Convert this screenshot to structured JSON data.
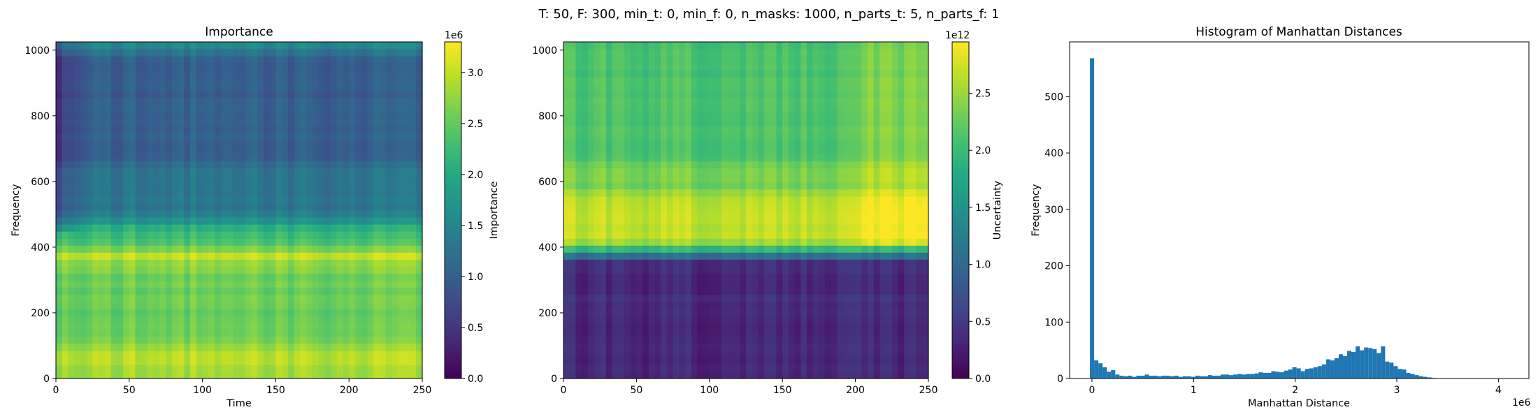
{
  "figure": {
    "suptitle": "T: 50, F: 300, min_t: 0, min_f: 0, n_masks: 1000, n_parts_t: 5, n_parts_f: 1"
  },
  "chart_data": [
    {
      "type": "heatmap",
      "title": "Importance",
      "xlabel": "Time",
      "ylabel": "Frequency",
      "colormap": "viridis",
      "xlim": [
        0,
        250
      ],
      "ylim": [
        0,
        1025
      ],
      "xticks": [
        "0",
        "50",
        "100",
        "150",
        "200",
        "250"
      ],
      "yticks": [
        "0",
        "200",
        "400",
        "600",
        "800",
        "1000"
      ],
      "colorbar": {
        "label": "Importance",
        "multiplier": "1e6",
        "range": [
          0,
          3.3
        ],
        "ticks": [
          "0.0",
          "0.5",
          "1.0",
          "1.5",
          "2.0",
          "2.5",
          "3.0"
        ]
      },
      "description_bands_by_frequency": [
        {
          "from": 0,
          "to": 100,
          "value": 2.9
        },
        {
          "from": 100,
          "to": 350,
          "value": 2.55
        },
        {
          "from": 350,
          "to": 400,
          "value": 3.05
        },
        {
          "from": 400,
          "to": 480,
          "value": 2.2
        },
        {
          "from": 480,
          "to": 650,
          "value": 1.3
        },
        {
          "from": 650,
          "to": 1000,
          "value": 1.0
        },
        {
          "from": 1000,
          "to": 1025,
          "value": 1.8
        }
      ]
    },
    {
      "type": "heatmap",
      "title": "",
      "xlabel": "",
      "ylabel": "",
      "colormap": "viridis",
      "xlim": [
        0,
        250
      ],
      "ylim": [
        0,
        1025
      ],
      "xticks": [
        "0",
        "50",
        "100",
        "150",
        "200",
        "250"
      ],
      "yticks": [
        "0",
        "200",
        "400",
        "600",
        "800",
        "1000"
      ],
      "colorbar": {
        "label": "Uncertainty",
        "multiplier": "1e12",
        "range": [
          0,
          2.95
        ],
        "ticks": [
          "0.0",
          "0.5",
          "1.0",
          "1.5",
          "2.0",
          "2.5"
        ]
      },
      "description_bands_by_frequency": [
        {
          "from": 0,
          "to": 380,
          "value": 0.35
        },
        {
          "from": 380,
          "to": 420,
          "value": 2.3
        },
        {
          "from": 420,
          "to": 560,
          "value": 2.7
        },
        {
          "from": 560,
          "to": 660,
          "value": 2.3
        },
        {
          "from": 660,
          "to": 1000,
          "value": 2.1
        }
      ]
    },
    {
      "type": "bar",
      "title": "Histogram of Manhattan Distances",
      "xlabel": "Manhattan Distance",
      "ylabel": "Frequency",
      "x_multiplier": "1e6",
      "bar_color": "#1f77b4",
      "xlim": [
        -0.22,
        4.3
      ],
      "ylim": [
        0,
        597
      ],
      "xticks": [
        "0",
        "1",
        "2",
        "3",
        "4"
      ],
      "yticks": [
        "0",
        "100",
        "200",
        "300",
        "400",
        "500"
      ],
      "bin_start": -0.02,
      "bin_width": 0.0415,
      "values": [
        568,
        32,
        27,
        20,
        12,
        15,
        7,
        5,
        4,
        5,
        3,
        5,
        5,
        7,
        5,
        5,
        4,
        5,
        5,
        4,
        5,
        3,
        4,
        4,
        3,
        5,
        4,
        4,
        6,
        5,
        5,
        7,
        7,
        6,
        7,
        8,
        7,
        8,
        8,
        9,
        11,
        10,
        10,
        13,
        12,
        11,
        14,
        16,
        20,
        18,
        13,
        17,
        18,
        20,
        22,
        25,
        34,
        32,
        36,
        43,
        40,
        49,
        47,
        57,
        50,
        55,
        54,
        52,
        45,
        57,
        30,
        28,
        22,
        17,
        16,
        10,
        8,
        6,
        4,
        3,
        2,
        1
      ]
    }
  ]
}
